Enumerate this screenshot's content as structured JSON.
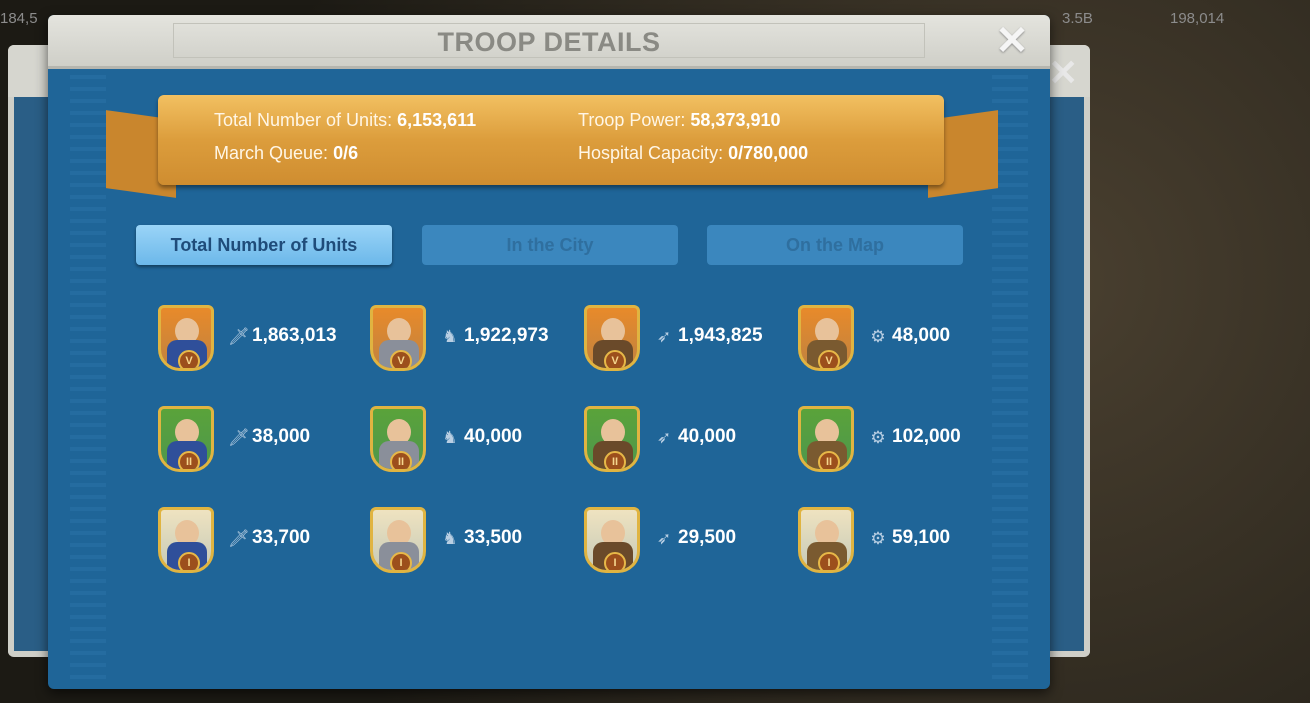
{
  "hud": {
    "left_value": "184,5",
    "resource": "3.5B",
    "gems": "198,014"
  },
  "title": "TROOP DETAILS",
  "summary": {
    "total_label": "Total Number of Units:",
    "total_value": "6,153,611",
    "power_label": "Troop Power:",
    "power_value": "58,373,910",
    "march_label": "March Queue:",
    "march_value": "0/6",
    "hospital_label": "Hospital Capacity:",
    "hospital_value": "0/780,000"
  },
  "tabs": [
    {
      "label": "Total Number of Units",
      "active": true
    },
    {
      "label": "In the City",
      "active": false
    },
    {
      "label": "On the Map",
      "active": false
    }
  ],
  "tier_colors": {
    "V": "#e88a2a",
    "II": "#5aa33a",
    "I": "#efe3c0"
  },
  "units": [
    [
      {
        "type": "infantry",
        "tier": "V",
        "count": "1,863,013"
      },
      {
        "type": "cavalry",
        "tier": "V",
        "count": "1,922,973"
      },
      {
        "type": "archer",
        "tier": "V",
        "count": "1,943,825"
      },
      {
        "type": "siege",
        "tier": "V",
        "count": "48,000"
      }
    ],
    [
      {
        "type": "infantry",
        "tier": "II",
        "count": "38,000"
      },
      {
        "type": "cavalry",
        "tier": "II",
        "count": "40,000"
      },
      {
        "type": "archer",
        "tier": "II",
        "count": "40,000"
      },
      {
        "type": "siege",
        "tier": "II",
        "count": "102,000"
      }
    ],
    [
      {
        "type": "infantry",
        "tier": "I",
        "count": "33,700"
      },
      {
        "type": "cavalry",
        "tier": "I",
        "count": "33,500"
      },
      {
        "type": "archer",
        "tier": "I",
        "count": "29,500"
      },
      {
        "type": "siege",
        "tier": "I",
        "count": "59,100"
      }
    ]
  ]
}
